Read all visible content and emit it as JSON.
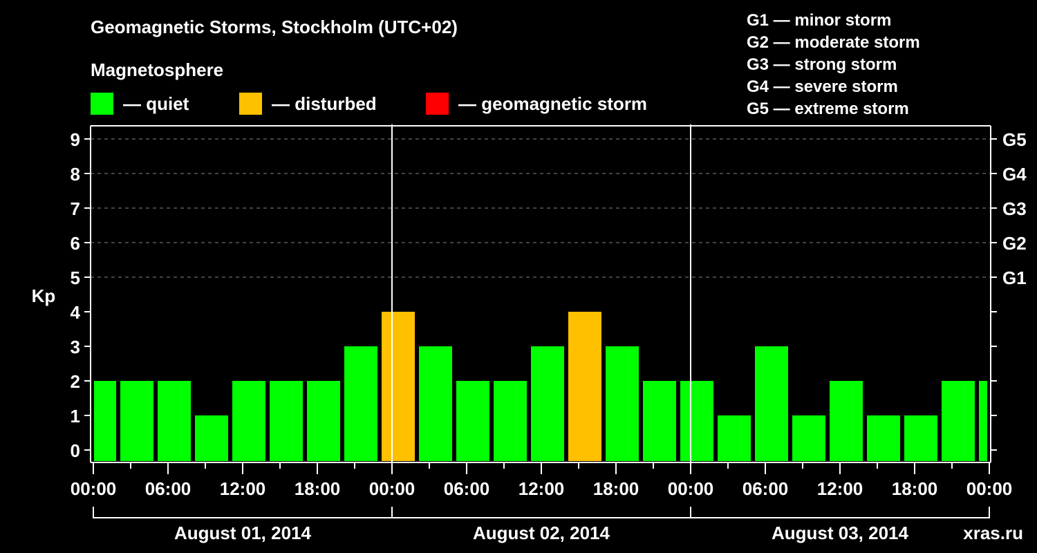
{
  "header": {
    "title": "Geomagnetic Storms, Stockholm (UTC+02)",
    "subtitle": "Magnetosphere"
  },
  "legend": {
    "items": [
      {
        "label": "— quiet",
        "color": "#00ff00"
      },
      {
        "label": "— disturbed",
        "color": "#ffc000"
      },
      {
        "label": "— geomagnetic storm",
        "color": "#ff0000"
      }
    ]
  },
  "g_scale": [
    "G1 — minor storm",
    "G2 — moderate storm",
    "G3 — strong storm",
    "G4 — severe storm",
    "G5 — extreme storm"
  ],
  "watermark": "xras.ru",
  "colors": {
    "quiet": "#00ff00",
    "disturbed": "#ffc000",
    "storm": "#ff0000",
    "grid": "#888888",
    "axis": "#ffffff",
    "watermark": "#808080"
  },
  "chart_data": {
    "type": "bar",
    "title": "Geomagnetic Storms, Stockholm (UTC+02)",
    "ylabel": "Kp",
    "xlabel": "",
    "ylim": [
      0,
      9
    ],
    "grid": true,
    "y_ticks": [
      0,
      1,
      2,
      3,
      4,
      5,
      6,
      7,
      8,
      9
    ],
    "right_ticks": [
      {
        "value": 5,
        "label": "G1"
      },
      {
        "value": 6,
        "label": "G2"
      },
      {
        "value": 7,
        "label": "G3"
      },
      {
        "value": 8,
        "label": "G4"
      },
      {
        "value": 9,
        "label": "G5"
      }
    ],
    "x_tick_labels": [
      "00:00",
      "06:00",
      "12:00",
      "18:00",
      "00:00",
      "06:00",
      "12:00",
      "18:00",
      "00:00",
      "06:00",
      "12:00",
      "18:00",
      "00:00"
    ],
    "days": [
      "August 01, 2014",
      "August 02, 2014",
      "August 03, 2014"
    ],
    "interval_hours": 3,
    "categories": [
      "Aug 01 00:00",
      "Aug 01 03:00",
      "Aug 01 06:00",
      "Aug 01 09:00",
      "Aug 01 12:00",
      "Aug 01 15:00",
      "Aug 01 18:00",
      "Aug 01 21:00",
      "Aug 02 00:00",
      "Aug 02 03:00",
      "Aug 02 06:00",
      "Aug 02 09:00",
      "Aug 02 12:00",
      "Aug 02 15:00",
      "Aug 02 18:00",
      "Aug 02 21:00",
      "Aug 03 00:00",
      "Aug 03 03:00",
      "Aug 03 06:00",
      "Aug 03 09:00",
      "Aug 03 12:00",
      "Aug 03 15:00",
      "Aug 03 18:00",
      "Aug 03 21:00",
      "Aug 04 00:00"
    ],
    "values": [
      2,
      2,
      2,
      1,
      2,
      2,
      2,
      3,
      4,
      3,
      2,
      2,
      3,
      4,
      3,
      2,
      2,
      1,
      3,
      1,
      2,
      1,
      1,
      2,
      2
    ],
    "status": [
      "quiet",
      "quiet",
      "quiet",
      "quiet",
      "quiet",
      "quiet",
      "quiet",
      "quiet",
      "disturbed",
      "quiet",
      "quiet",
      "quiet",
      "quiet",
      "disturbed",
      "quiet",
      "quiet",
      "quiet",
      "quiet",
      "quiet",
      "quiet",
      "quiet",
      "quiet",
      "quiet",
      "quiet",
      "quiet"
    ],
    "legend_position": "top"
  }
}
